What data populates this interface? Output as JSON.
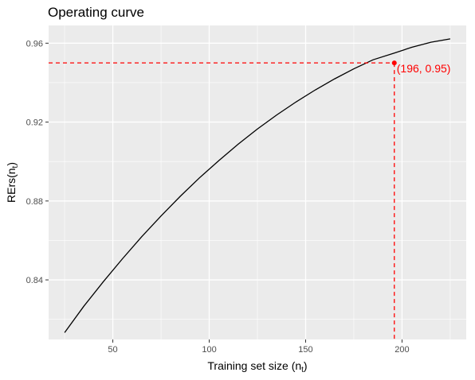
{
  "chart_data": {
    "type": "line",
    "title": "Operating curve",
    "xlabel": {
      "main": "Training set size (n",
      "sub": "t",
      "suffix": ")"
    },
    "ylabel": {
      "main": "RErs(n",
      "sub": "t",
      "suffix": ")"
    },
    "xlim": [
      16.7,
      233.3
    ],
    "ylim": [
      0.8098,
      0.969
    ],
    "x_ticks": [
      50,
      100,
      150,
      200
    ],
    "x_tick_labels": [
      "50",
      "100",
      "150",
      "200"
    ],
    "y_ticks": [
      0.84,
      0.88,
      0.92,
      0.96
    ],
    "y_tick_labels": [
      "0.84",
      "0.88",
      "0.92",
      "0.96"
    ],
    "grid": true,
    "series": [
      {
        "x": [
          25,
          35,
          45,
          55,
          65,
          75,
          85,
          95,
          105,
          115,
          125,
          135,
          145,
          155,
          165,
          175,
          185,
          196,
          205,
          215,
          225
        ],
        "y": [
          0.8133,
          0.8267,
          0.839,
          0.8507,
          0.8619,
          0.8724,
          0.8824,
          0.8918,
          0.9005,
          0.9088,
          0.9165,
          0.9236,
          0.9302,
          0.9363,
          0.9419,
          0.947,
          0.9516,
          0.955,
          0.9579,
          0.9605,
          0.9622
        ],
        "color": "#000000"
      }
    ],
    "highlight": {
      "x": 196,
      "y": 0.95,
      "label": "(196, 0.95)",
      "color": "#ff0000"
    }
  }
}
